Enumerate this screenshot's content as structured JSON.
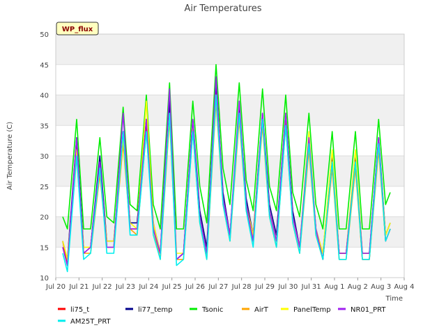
{
  "chart_data": {
    "type": "line",
    "title": "Air Temperatures",
    "xlabel": "Time",
    "ylabel": "Air Temperature (C)",
    "badge": "WP_flux",
    "ylim": [
      10,
      50
    ],
    "xlim": [
      0,
      15
    ],
    "y_ticks": [
      10,
      15,
      20,
      25,
      30,
      35,
      40,
      45,
      50
    ],
    "x_ticks": [
      {
        "x": 0,
        "label": "Jul 20"
      },
      {
        "x": 1,
        "label": "Jul 21"
      },
      {
        "x": 2,
        "label": "Jul 22"
      },
      {
        "x": 3,
        "label": "Jul 23"
      },
      {
        "x": 4,
        "label": "Jul 24"
      },
      {
        "x": 5,
        "label": "Jul 25"
      },
      {
        "x": 6,
        "label": "Jul 26"
      },
      {
        "x": 7,
        "label": "Jul 27"
      },
      {
        "x": 8,
        "label": "Jul 28"
      },
      {
        "x": 9,
        "label": "Jul 29"
      },
      {
        "x": 10,
        "label": "Jul 30"
      },
      {
        "x": 11,
        "label": "Jul 31"
      },
      {
        "x": 12,
        "label": "Aug 1"
      },
      {
        "x": 13,
        "label": "Aug 2"
      },
      {
        "x": 14,
        "label": "Aug 3"
      },
      {
        "x": 15,
        "label": "Aug 4"
      }
    ],
    "grid": true,
    "background_bands": true,
    "legend_position": "bottom",
    "x": [
      0.3,
      0.5,
      0.9,
      1.2,
      1.5,
      1.9,
      2.2,
      2.5,
      2.9,
      3.2,
      3.5,
      3.9,
      4.2,
      4.5,
      4.9,
      5.2,
      5.5,
      5.9,
      6.2,
      6.5,
      6.9,
      7.2,
      7.5,
      7.9,
      8.2,
      8.5,
      8.9,
      9.2,
      9.5,
      9.9,
      10.2,
      10.5,
      10.9,
      11.2,
      11.5,
      11.9,
      12.2,
      12.5,
      12.9,
      13.2,
      13.5,
      13.9,
      14.2,
      14.4
    ],
    "series": [
      {
        "name": "li75_t",
        "color": "#ff0000",
        "values": [
          16,
          12,
          32,
          14,
          15,
          29,
          15,
          15,
          33,
          18,
          18,
          35,
          18,
          14,
          38,
          13,
          14,
          35,
          20,
          14,
          41,
          23,
          17,
          37,
          22,
          16,
          36,
          21,
          16,
          36,
          20,
          15,
          32,
          18,
          13,
          29,
          14,
          14,
          29,
          13,
          13,
          32,
          16,
          18
        ]
      },
      {
        "name": "li77_temp",
        "color": "#00008b",
        "values": [
          16,
          13,
          33,
          15,
          15,
          30,
          16,
          16,
          34,
          19,
          19,
          36,
          19,
          14,
          39,
          13,
          14,
          36,
          21,
          15,
          42,
          24,
          17,
          38,
          23,
          17,
          37,
          22,
          17,
          37,
          21,
          15,
          33,
          18,
          14,
          30,
          14,
          14,
          30,
          14,
          14,
          33,
          17,
          19
        ]
      },
      {
        "name": "Tsonic",
        "color": "#00ee00",
        "values": [
          20,
          18,
          36,
          18,
          18,
          33,
          20,
          19,
          38,
          22,
          21,
          40,
          22,
          18,
          42,
          18,
          18,
          39,
          25,
          19,
          45,
          28,
          22,
          42,
          26,
          21,
          41,
          25,
          21,
          40,
          24,
          20,
          37,
          22,
          18,
          34,
          18,
          18,
          34,
          18,
          18,
          36,
          22,
          24
        ]
      },
      {
        "name": "AirT",
        "color": "#ffa500",
        "values": [
          15,
          12,
          30,
          14,
          14,
          27,
          15,
          15,
          32,
          18,
          17,
          34,
          18,
          13,
          36,
          13,
          13,
          34,
          19,
          13,
          39,
          22,
          16,
          36,
          21,
          16,
          35,
          20,
          15,
          35,
          19,
          14,
          31,
          17,
          13,
          28,
          13,
          13,
          28,
          13,
          13,
          31,
          16,
          18
        ]
      },
      {
        "name": "PanelTemp",
        "color": "#ffff00",
        "values": [
          16,
          13,
          31,
          15,
          15,
          28,
          16,
          16,
          33,
          19,
          18,
          39,
          19,
          14,
          37,
          14,
          14,
          35,
          20,
          14,
          40,
          23,
          17,
          37,
          22,
          17,
          36,
          21,
          16,
          37,
          20,
          15,
          34,
          18,
          14,
          31,
          14,
          14,
          31,
          14,
          14,
          32,
          17,
          19
        ]
      },
      {
        "name": "NR01_PRT",
        "color": "#a020f0",
        "values": [
          15,
          12,
          33,
          14,
          15,
          29,
          15,
          15,
          37,
          18,
          18,
          36,
          18,
          14,
          41,
          13,
          14,
          36,
          20,
          14,
          43,
          23,
          17,
          39,
          22,
          16,
          37,
          21,
          16,
          37,
          20,
          15,
          33,
          18,
          13,
          29,
          14,
          14,
          29,
          14,
          14,
          33,
          16,
          18
        ]
      },
      {
        "name": "AM25T_PRT",
        "color": "#00eeee",
        "values": [
          14,
          11,
          30,
          13,
          14,
          28,
          14,
          14,
          34,
          17,
          17,
          34,
          17,
          13,
          37,
          12,
          13,
          34,
          19,
          13,
          40,
          22,
          16,
          37,
          21,
          15,
          36,
          20,
          15,
          35,
          19,
          14,
          32,
          17,
          13,
          29,
          13,
          13,
          29,
          13,
          13,
          32,
          16,
          18
        ]
      }
    ]
  }
}
